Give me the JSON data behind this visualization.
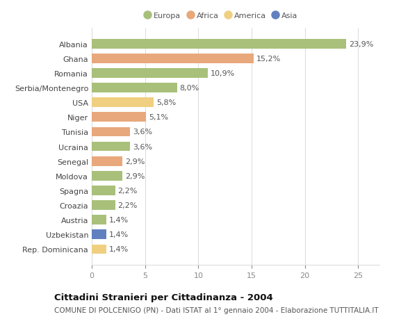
{
  "countries": [
    "Albania",
    "Ghana",
    "Romania",
    "Serbia/Montenegro",
    "USA",
    "Niger",
    "Tunisia",
    "Ucraina",
    "Senegal",
    "Moldova",
    "Spagna",
    "Croazia",
    "Austria",
    "Uzbekistan",
    "Rep. Dominicana"
  ],
  "values": [
    23.9,
    15.2,
    10.9,
    8.0,
    5.8,
    5.1,
    3.6,
    3.6,
    2.9,
    2.9,
    2.2,
    2.2,
    1.4,
    1.4,
    1.4
  ],
  "labels": [
    "23,9%",
    "15,2%",
    "10,9%",
    "8,0%",
    "5,8%",
    "5,1%",
    "3,6%",
    "3,6%",
    "2,9%",
    "2,9%",
    "2,2%",
    "2,2%",
    "1,4%",
    "1,4%",
    "1,4%"
  ],
  "colors": [
    "#a8c07a",
    "#e8a87c",
    "#a8c07a",
    "#a8c07a",
    "#f0d080",
    "#e8a87c",
    "#e8a87c",
    "#a8c07a",
    "#e8a87c",
    "#a8c07a",
    "#a8c07a",
    "#a8c07a",
    "#a8c07a",
    "#6080c0",
    "#f0d080"
  ],
  "legend": [
    {
      "label": "Europa",
      "color": "#a8c07a"
    },
    {
      "label": "Africa",
      "color": "#e8a87c"
    },
    {
      "label": "America",
      "color": "#f0d080"
    },
    {
      "label": "Asia",
      "color": "#6080c0"
    }
  ],
  "title": "Cittadini Stranieri per Cittadinanza - 2004",
  "subtitle": "COMUNE DI POLCENIGO (PN) - Dati ISTAT al 1° gennaio 2004 - Elaborazione TUTTITALIA.IT",
  "xlim": [
    0,
    27
  ],
  "xticks": [
    0,
    5,
    10,
    15,
    20,
    25
  ],
  "bg_color": "#ffffff",
  "grid_color": "#dddddd",
  "bar_height": 0.65,
  "label_fontsize": 8.0,
  "tick_fontsize": 8.0,
  "title_fontsize": 9.5,
  "subtitle_fontsize": 7.5
}
